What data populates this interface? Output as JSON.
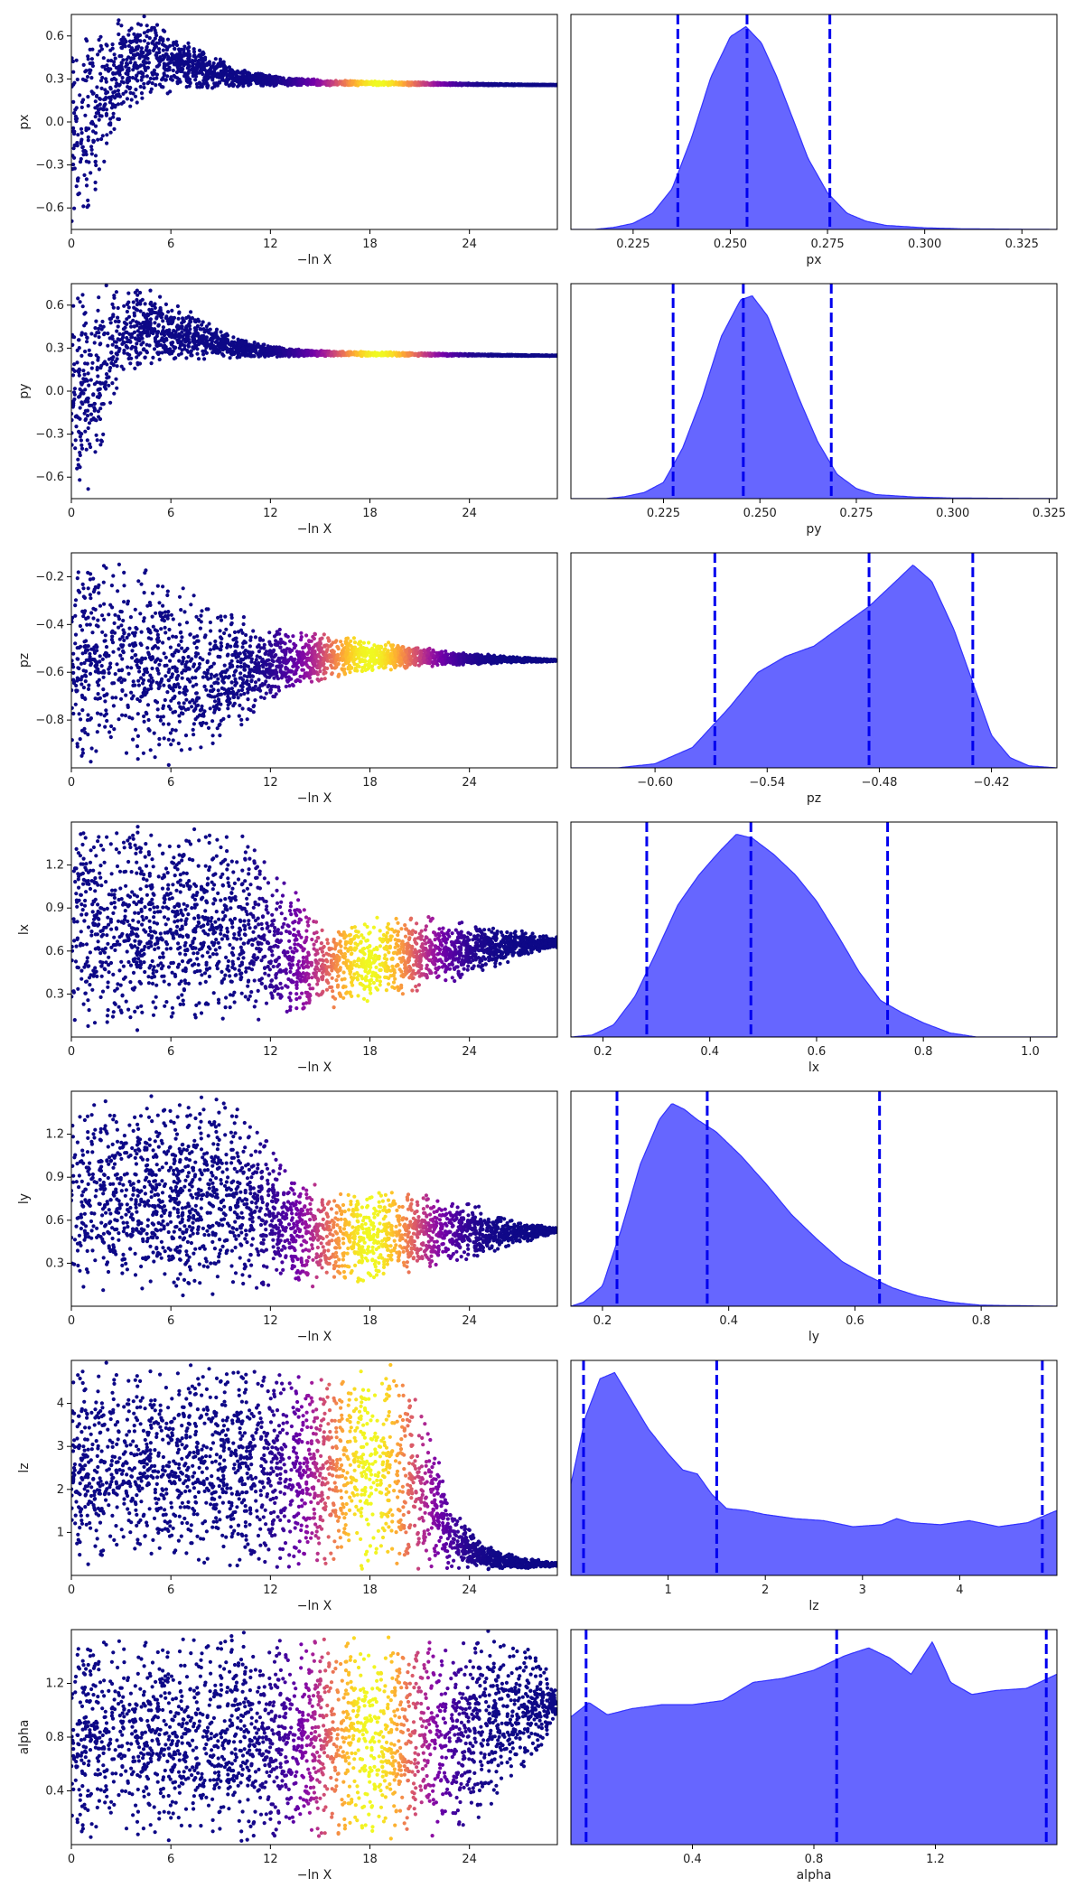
{
  "colors": {
    "kde_fill": "#6666ff",
    "kde_line": "#3333ff",
    "quantile_line": "#0000ee",
    "cmap": [
      "#0d0887",
      "#46039f",
      "#7201a8",
      "#9c179e",
      "#bd3786",
      "#d8576b",
      "#ed7953",
      "#fb9f3a",
      "#fdca26",
      "#f0f921"
    ]
  },
  "chart_data": [
    {
      "type": "scatter",
      "name": "px-trace",
      "xlabel": "−ln X",
      "ylabel": "px",
      "xlim": [
        0,
        29.3
      ],
      "ylim": [
        -0.75,
        0.75
      ],
      "xticks": [
        0,
        6,
        12,
        18,
        24
      ],
      "xtick_labels": [
        "0",
        "6",
        "12",
        "18",
        "24"
      ],
      "yticks": [
        -0.6,
        -0.3,
        0.0,
        0.3,
        0.6
      ],
      "ytick_labels": [
        "−0.6",
        "−0.3",
        "0.0",
        "0.3",
        "0.6"
      ],
      "envelope": {
        "x": [
          0,
          1,
          2,
          3,
          4.5,
          6,
          8,
          10,
          13,
          16,
          20,
          24,
          29
        ],
        "lower": [
          -0.75,
          -0.75,
          -0.4,
          0.02,
          0.14,
          0.19,
          0.22,
          0.24,
          0.25,
          0.255,
          0.255,
          0.255,
          0.255
        ],
        "upper": [
          0.75,
          0.75,
          0.75,
          0.75,
          0.75,
          0.65,
          0.5,
          0.38,
          0.31,
          0.29,
          0.28,
          0.27,
          0.26
        ]
      },
      "color_peak": 18.5,
      "color_width": 3.2
    },
    {
      "type": "area",
      "name": "px-marginal",
      "xlabel": "px",
      "ylabel": "",
      "xlim": [
        0.209,
        0.334
      ],
      "xticks": [
        0.225,
        0.25,
        0.275,
        0.3,
        0.325
      ],
      "xtick_labels": [
        "0.225",
        "0.250",
        "0.275",
        "0.300",
        "0.325"
      ],
      "x": [
        0.209,
        0.215,
        0.22,
        0.225,
        0.23,
        0.235,
        0.24,
        0.245,
        0.25,
        0.254,
        0.258,
        0.262,
        0.266,
        0.27,
        0.275,
        0.28,
        0.285,
        0.29,
        0.3,
        0.31,
        0.334
      ],
      "y": [
        0.0,
        0.0,
        0.01,
        0.03,
        0.08,
        0.2,
        0.45,
        0.75,
        0.95,
        1.0,
        0.92,
        0.75,
        0.55,
        0.35,
        0.18,
        0.08,
        0.04,
        0.02,
        0.008,
        0.003,
        0.0
      ],
      "quantiles": [
        0.2365,
        0.2543,
        0.2756
      ]
    },
    {
      "type": "scatter",
      "name": "py-trace",
      "xlabel": "−ln X",
      "ylabel": "py",
      "xlim": [
        0,
        29.3
      ],
      "ylim": [
        -0.75,
        0.75
      ],
      "xticks": [
        0,
        6,
        12,
        18,
        24
      ],
      "xtick_labels": [
        "0",
        "6",
        "12",
        "18",
        "24"
      ],
      "yticks": [
        -0.6,
        -0.3,
        0.0,
        0.3,
        0.6
      ],
      "ytick_labels": [
        "−0.6",
        "−0.3",
        "0.0",
        "0.3",
        "0.6"
      ],
      "envelope": {
        "x": [
          0,
          1,
          2,
          3,
          4.5,
          6,
          8,
          10,
          13,
          16,
          20,
          24,
          29
        ],
        "lower": [
          -0.75,
          -0.75,
          -0.4,
          0.02,
          0.13,
          0.18,
          0.21,
          0.23,
          0.24,
          0.245,
          0.245,
          0.245,
          0.245
        ],
        "upper": [
          0.75,
          0.75,
          0.75,
          0.75,
          0.75,
          0.65,
          0.5,
          0.37,
          0.3,
          0.28,
          0.27,
          0.26,
          0.25
        ]
      },
      "color_peak": 18.5,
      "color_width": 3.2
    },
    {
      "type": "area",
      "name": "py-marginal",
      "xlabel": "py",
      "ylabel": "",
      "xlim": [
        0.201,
        0.327
      ],
      "xticks": [
        0.225,
        0.25,
        0.275,
        0.3,
        0.325
      ],
      "xtick_labels": [
        "0.225",
        "0.250",
        "0.275",
        "0.300",
        "0.325"
      ],
      "x": [
        0.201,
        0.21,
        0.215,
        0.22,
        0.225,
        0.23,
        0.235,
        0.24,
        0.245,
        0.248,
        0.252,
        0.256,
        0.26,
        0.265,
        0.27,
        0.275,
        0.28,
        0.29,
        0.3,
        0.327
      ],
      "y": [
        0.0,
        0.0,
        0.01,
        0.03,
        0.08,
        0.25,
        0.5,
        0.8,
        0.98,
        1.0,
        0.9,
        0.7,
        0.5,
        0.28,
        0.12,
        0.05,
        0.02,
        0.008,
        0.003,
        0.0
      ],
      "quantiles": [
        0.2275,
        0.2457,
        0.2685
      ]
    },
    {
      "type": "scatter",
      "name": "pz-trace",
      "xlabel": "−ln X",
      "ylabel": "pz",
      "xlim": [
        0,
        29.3
      ],
      "ylim": [
        -1.0,
        -0.1
      ],
      "xticks": [
        0,
        6,
        12,
        18,
        24
      ],
      "xtick_labels": [
        "0",
        "6",
        "12",
        "18",
        "24"
      ],
      "yticks": [
        -0.8,
        -0.6,
        -0.4,
        -0.2
      ],
      "ytick_labels": [
        "−0.8",
        "−0.6",
        "−0.4",
        "−0.2"
      ],
      "envelope": {
        "x": [
          0,
          2,
          4,
          6,
          8,
          9,
          12,
          15,
          18,
          21,
          24,
          29
        ],
        "lower": [
          -1.0,
          -1.0,
          -1.0,
          -1.0,
          -0.97,
          -0.9,
          -0.72,
          -0.64,
          -0.6,
          -0.58,
          -0.57,
          -0.555
        ],
        "upper": [
          -0.1,
          -0.1,
          -0.1,
          -0.18,
          -0.27,
          -0.33,
          -0.4,
          -0.43,
          -0.46,
          -0.49,
          -0.52,
          -0.545
        ]
      },
      "color_peak": 18.0,
      "color_width": 3.5
    },
    {
      "type": "area",
      "name": "pz-marginal",
      "xlabel": "pz",
      "ylabel": "",
      "xlim": [
        -0.645,
        -0.385
      ],
      "xticks": [
        -0.6,
        -0.54,
        -0.48,
        -0.42
      ],
      "xtick_labels": [
        "−0.60",
        "−0.54",
        "−0.48",
        "−0.42"
      ],
      "x": [
        -0.645,
        -0.62,
        -0.6,
        -0.58,
        -0.56,
        -0.545,
        -0.53,
        -0.515,
        -0.5,
        -0.485,
        -0.47,
        -0.462,
        -0.452,
        -0.44,
        -0.43,
        -0.42,
        -0.41,
        -0.4,
        -0.385
      ],
      "y": [
        0.0,
        0.0,
        0.02,
        0.1,
        0.3,
        0.47,
        0.55,
        0.6,
        0.7,
        0.8,
        0.93,
        1.0,
        0.92,
        0.68,
        0.42,
        0.16,
        0.05,
        0.01,
        0.0
      ],
      "quantiles": [
        -0.568,
        -0.4855,
        -0.43
      ]
    },
    {
      "type": "scatter",
      "name": "lx-trace",
      "xlabel": "−ln X",
      "ylabel": "lx",
      "xlim": [
        0,
        29.3
      ],
      "ylim": [
        0.0,
        1.5
      ],
      "xticks": [
        0,
        6,
        12,
        18,
        24
      ],
      "xtick_labels": [
        "0",
        "6",
        "12",
        "18",
        "24"
      ],
      "yticks": [
        0.3,
        0.6,
        0.9,
        1.2
      ],
      "ytick_labels": [
        "0.3",
        "0.6",
        "0.9",
        "1.2"
      ],
      "envelope": {
        "x": [
          0,
          3,
          6,
          9,
          11,
          13,
          15,
          18,
          21,
          24,
          27,
          29
        ],
        "lower": [
          0.05,
          0.03,
          0.03,
          0.05,
          0.07,
          0.1,
          0.16,
          0.24,
          0.3,
          0.42,
          0.55,
          0.62
        ],
        "upper": [
          1.5,
          1.5,
          1.5,
          1.5,
          1.42,
          1.12,
          0.82,
          0.86,
          0.86,
          0.8,
          0.75,
          0.7
        ]
      },
      "color_peak": 18.0,
      "color_width": 3.6
    },
    {
      "type": "area",
      "name": "lx-marginal",
      "xlabel": "lx",
      "ylabel": "",
      "xlim": [
        0.14,
        1.05
      ],
      "xticks": [
        0.2,
        0.4,
        0.6,
        0.8,
        1.0
      ],
      "xtick_labels": [
        "0.2",
        "0.4",
        "0.6",
        "0.8",
        "1.0"
      ],
      "x": [
        0.14,
        0.18,
        0.22,
        0.26,
        0.3,
        0.34,
        0.38,
        0.42,
        0.45,
        0.48,
        0.52,
        0.56,
        0.6,
        0.64,
        0.68,
        0.72,
        0.76,
        0.8,
        0.85,
        0.9,
        1.05
      ],
      "y": [
        0.0,
        0.01,
        0.06,
        0.2,
        0.42,
        0.65,
        0.8,
        0.92,
        1.0,
        0.98,
        0.9,
        0.8,
        0.67,
        0.5,
        0.32,
        0.18,
        0.12,
        0.07,
        0.02,
        0.0,
        0.0
      ],
      "quantiles": [
        0.282,
        0.477,
        0.733
      ]
    },
    {
      "type": "scatter",
      "name": "ly-trace",
      "xlabel": "−ln X",
      "ylabel": "ly",
      "xlim": [
        0,
        29.3
      ],
      "ylim": [
        0.0,
        1.5
      ],
      "xticks": [
        0,
        6,
        12,
        18,
        24
      ],
      "xtick_labels": [
        "0",
        "6",
        "12",
        "18",
        "24"
      ],
      "yticks": [
        0.3,
        0.6,
        0.9,
        1.2
      ],
      "ytick_labels": [
        "0.3",
        "0.6",
        "0.9",
        "1.2"
      ],
      "envelope": {
        "x": [
          0,
          3,
          6,
          9,
          10,
          13,
          15,
          18,
          21,
          24,
          27,
          29
        ],
        "lower": [
          0.05,
          0.02,
          0.02,
          0.04,
          0.06,
          0.08,
          0.12,
          0.18,
          0.24,
          0.32,
          0.43,
          0.5
        ],
        "upper": [
          1.5,
          1.5,
          1.5,
          1.5,
          1.45,
          1.05,
          0.82,
          0.82,
          0.8,
          0.72,
          0.6,
          0.55
        ]
      },
      "color_peak": 18.0,
      "color_width": 3.6
    },
    {
      "type": "area",
      "name": "ly-marginal",
      "xlabel": "ly",
      "ylabel": "",
      "xlim": [
        0.15,
        0.92
      ],
      "xticks": [
        0.2,
        0.4,
        0.6,
        0.8
      ],
      "xtick_labels": [
        "0.2",
        "0.4",
        "0.6",
        "0.8"
      ],
      "x": [
        0.15,
        0.17,
        0.2,
        0.23,
        0.26,
        0.29,
        0.31,
        0.33,
        0.35,
        0.38,
        0.42,
        0.46,
        0.5,
        0.54,
        0.58,
        0.62,
        0.66,
        0.7,
        0.75,
        0.8,
        0.92
      ],
      "y": [
        0.0,
        0.02,
        0.1,
        0.38,
        0.7,
        0.92,
        1.0,
        0.97,
        0.92,
        0.86,
        0.74,
        0.6,
        0.45,
        0.33,
        0.22,
        0.15,
        0.09,
        0.05,
        0.02,
        0.005,
        0.0
      ],
      "quantiles": [
        0.223,
        0.366,
        0.639
      ]
    },
    {
      "type": "scatter",
      "name": "lz-trace",
      "xlabel": "−ln X",
      "ylabel": "lz",
      "xlim": [
        0,
        29.3
      ],
      "ylim": [
        0.0,
        5.0
      ],
      "xticks": [
        0,
        6,
        12,
        18,
        24
      ],
      "xtick_labels": [
        "0",
        "6",
        "12",
        "18",
        "24"
      ],
      "yticks": [
        1,
        2,
        3,
        4
      ],
      "ytick_labels": [
        "1",
        "2",
        "3",
        "4"
      ],
      "envelope": {
        "x": [
          0,
          6,
          12,
          15,
          18,
          20,
          21.5,
          23,
          25,
          27,
          29
        ],
        "lower": [
          0.05,
          0.05,
          0.05,
          0.05,
          0.05,
          0.05,
          0.05,
          0.06,
          0.1,
          0.15,
          0.2
        ],
        "upper": [
          5.0,
          5.0,
          5.0,
          5.0,
          5.0,
          5.0,
          3.8,
          1.6,
          0.7,
          0.45,
          0.3
        ]
      },
      "color_peak": 18.0,
      "color_width": 3.4
    },
    {
      "type": "area",
      "name": "lz-marginal",
      "xlabel": "lz",
      "ylabel": "",
      "xlim": [
        0.0,
        5.0
      ],
      "xticks": [
        1,
        2,
        3,
        4
      ],
      "xtick_labels": [
        "1",
        "2",
        "3",
        "4"
      ],
      "x": [
        0.0,
        0.15,
        0.3,
        0.45,
        0.6,
        0.8,
        1.0,
        1.15,
        1.3,
        1.45,
        1.6,
        1.8,
        2.0,
        2.3,
        2.6,
        2.9,
        3.2,
        3.35,
        3.5,
        3.8,
        4.1,
        4.4,
        4.7,
        5.0
      ],
      "y": [
        0.45,
        0.78,
        0.97,
        1.0,
        0.88,
        0.72,
        0.6,
        0.52,
        0.5,
        0.4,
        0.33,
        0.32,
        0.3,
        0.28,
        0.27,
        0.24,
        0.25,
        0.28,
        0.26,
        0.25,
        0.27,
        0.24,
        0.26,
        0.32
      ],
      "quantiles": [
        0.13,
        1.5,
        4.85
      ]
    },
    {
      "type": "scatter",
      "name": "alpha-trace",
      "xlabel": "−ln X",
      "ylabel": "alpha",
      "xlim": [
        0,
        29.3
      ],
      "ylim": [
        0.0,
        1.6
      ],
      "xticks": [
        0,
        6,
        12,
        18,
        24
      ],
      "xtick_labels": [
        "0",
        "6",
        "12",
        "18",
        "24"
      ],
      "yticks": [
        0.4,
        0.8,
        1.2
      ],
      "ytick_labels": [
        "0.4",
        "0.8",
        "1.2"
      ],
      "envelope": {
        "x": [
          0,
          6,
          12,
          18,
          22,
          24,
          26,
          28,
          29
        ],
        "lower": [
          0.01,
          0.01,
          0.01,
          0.01,
          0.01,
          0.05,
          0.3,
          0.6,
          0.9
        ],
        "upper": [
          1.6,
          1.6,
          1.6,
          1.6,
          1.6,
          1.6,
          1.6,
          1.5,
          1.2
        ]
      },
      "color_peak": 18.0,
      "color_width": 3.4
    },
    {
      "type": "area",
      "name": "alpha-marginal",
      "xlabel": "alpha",
      "ylabel": "",
      "xlim": [
        0.0,
        1.6
      ],
      "xticks": [
        0.4,
        0.8,
        1.2
      ],
      "xtick_labels": [
        "0.4",
        "0.8",
        "1.2"
      ],
      "x": [
        0.0,
        0.06,
        0.12,
        0.2,
        0.3,
        0.4,
        0.5,
        0.6,
        0.7,
        0.8,
        0.9,
        0.98,
        1.05,
        1.12,
        1.19,
        1.25,
        1.32,
        1.4,
        1.5,
        1.6
      ],
      "y": [
        0.63,
        0.7,
        0.64,
        0.67,
        0.69,
        0.69,
        0.71,
        0.8,
        0.82,
        0.86,
        0.93,
        0.97,
        0.92,
        0.84,
        1.0,
        0.8,
        0.74,
        0.76,
        0.77,
        0.84
      ],
      "quantiles": [
        0.05,
        0.875,
        1.565
      ]
    }
  ]
}
